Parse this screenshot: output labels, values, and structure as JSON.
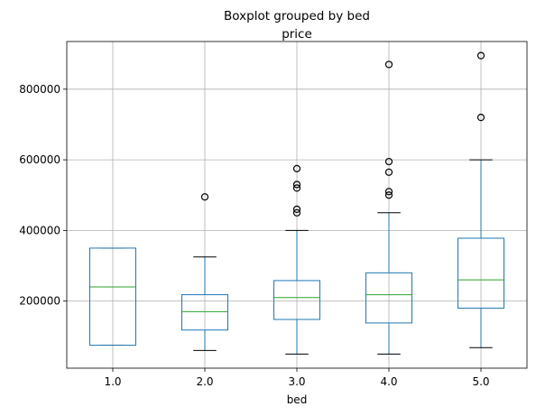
{
  "chart_data": {
    "type": "box",
    "title": "Boxplot grouped by bed",
    "subtitle": "price",
    "xlabel": "bed",
    "ylabel": "",
    "grid": true,
    "ylim": [
      10000,
      935000
    ],
    "yticks": [
      200000,
      400000,
      600000,
      800000
    ],
    "ytick_labels": [
      "200000",
      "400000",
      "600000",
      "800000"
    ],
    "categories": [
      "1.0",
      "2.0",
      "3.0",
      "4.0",
      "5.0"
    ],
    "colors": {
      "box": "#1f77b4",
      "median": "#2ca02c",
      "whisker": "#1f77b4",
      "cap": "#000000",
      "outlier": "#000000",
      "grid": "#b0b0b0"
    },
    "boxes": [
      {
        "category": "1.0",
        "whislo": 75000,
        "q1": 75000,
        "med": 240000,
        "q3": 350000,
        "whishi": 350000,
        "fliers": []
      },
      {
        "category": "2.0",
        "whislo": 60000,
        "q1": 118000,
        "med": 170000,
        "q3": 218000,
        "whishi": 325000,
        "fliers": [
          495000
        ]
      },
      {
        "category": "3.0",
        "whislo": 50000,
        "q1": 148000,
        "med": 210000,
        "q3": 258000,
        "whishi": 400000,
        "fliers": [
          450000,
          460000,
          520000,
          530000,
          575000
        ]
      },
      {
        "category": "4.0",
        "whislo": 50000,
        "q1": 138000,
        "med": 218000,
        "q3": 280000,
        "whishi": 450000,
        "fliers": [
          500000,
          510000,
          565000,
          595000,
          870000
        ]
      },
      {
        "category": "5.0",
        "whislo": 68000,
        "q1": 180000,
        "med": 260000,
        "q3": 378000,
        "whishi": 600000,
        "fliers": [
          720000,
          895000
        ]
      }
    ]
  }
}
